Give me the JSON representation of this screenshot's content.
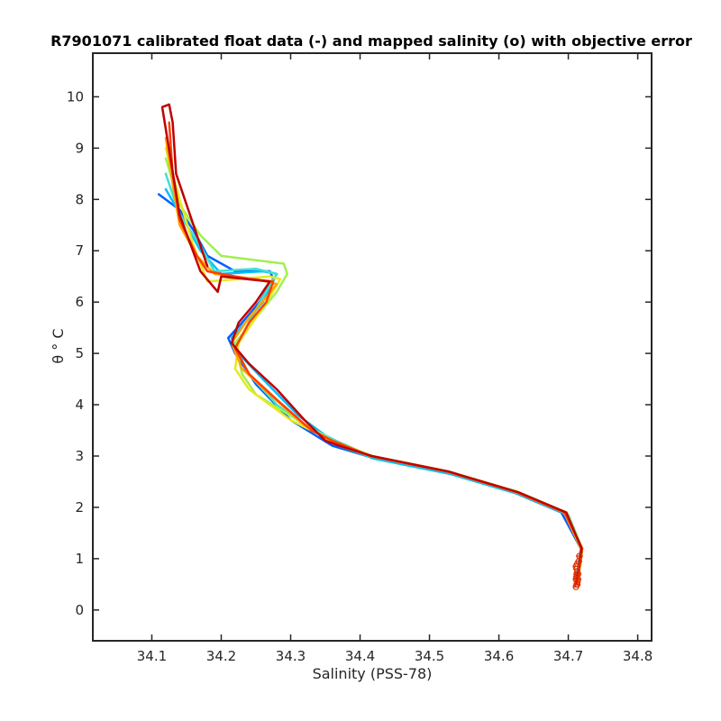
{
  "chart_data": {
    "type": "line",
    "title": "R7901071 calibrated float data (-) and mapped salinity (o) with objective error",
    "xlabel": "Salinity (PSS-78)",
    "ylabel": "θ ° C",
    "xlim": [
      34.015,
      34.82
    ],
    "ylim": [
      -0.6,
      10.85
    ],
    "xticks": [
      34.1,
      34.2,
      34.3,
      34.4,
      34.5,
      34.6,
      34.7,
      34.8
    ],
    "yticks": [
      0,
      1,
      2,
      3,
      4,
      5,
      6,
      7,
      8,
      9,
      10
    ],
    "grid": false,
    "legend": "none",
    "colors": [
      "#0060ff",
      "#00bfff",
      "#40e0d0",
      "#a0f050",
      "#e8e820",
      "#ffa500",
      "#ff4000",
      "#c00000"
    ],
    "series": [
      {
        "color": "#0060ff",
        "x": [
          34.71,
          34.715,
          34.718,
          34.69,
          34.62,
          34.52,
          34.41,
          34.36,
          34.3,
          34.25,
          34.22,
          34.21,
          34.23,
          34.255,
          34.275,
          34.27,
          34.22,
          34.18,
          34.16,
          34.14,
          34.11
        ],
        "y": [
          0.5,
          0.9,
          1.2,
          1.9,
          2.3,
          2.7,
          3.0,
          3.2,
          3.7,
          4.4,
          5.0,
          5.3,
          5.6,
          6.0,
          6.45,
          6.6,
          6.6,
          6.9,
          7.4,
          7.8,
          8.1
        ]
      },
      {
        "color": "#00bfff",
        "x": [
          34.712,
          34.717,
          34.72,
          34.7,
          34.63,
          34.53,
          34.42,
          34.37,
          34.31,
          34.26,
          34.225,
          34.215,
          34.235,
          34.26,
          34.28,
          34.26,
          34.2,
          34.17,
          34.15,
          34.12
        ],
        "y": [
          0.5,
          0.9,
          1.2,
          1.85,
          2.25,
          2.65,
          2.95,
          3.2,
          3.8,
          4.5,
          5.0,
          5.3,
          5.6,
          6.0,
          6.55,
          6.6,
          6.55,
          7.0,
          7.5,
          8.2
        ]
      },
      {
        "color": "#40e0d0",
        "x": [
          34.711,
          34.716,
          34.719,
          34.695,
          34.625,
          34.525,
          34.415,
          34.365,
          34.32,
          34.28,
          34.24,
          34.22,
          34.24,
          34.26,
          34.28,
          34.25,
          34.19,
          34.17,
          34.14,
          34.12
        ],
        "y": [
          0.5,
          0.95,
          1.2,
          1.9,
          2.3,
          2.7,
          3.0,
          3.3,
          3.6,
          4.0,
          4.6,
          5.1,
          5.6,
          6.1,
          6.55,
          6.65,
          6.6,
          7.1,
          7.7,
          8.5
        ]
      },
      {
        "color": "#a0f050",
        "x": [
          34.712,
          34.718,
          34.72,
          34.698,
          34.628,
          34.528,
          34.418,
          34.36,
          34.31,
          34.25,
          34.23,
          34.22,
          34.25,
          34.28,
          34.295,
          34.29,
          34.2,
          34.17,
          34.14,
          34.12
        ],
        "y": [
          0.5,
          0.9,
          1.2,
          1.9,
          2.3,
          2.7,
          3.0,
          3.3,
          3.7,
          4.2,
          4.6,
          5.2,
          5.7,
          6.2,
          6.55,
          6.75,
          6.9,
          7.3,
          7.9,
          8.8
        ]
      },
      {
        "color": "#e8e820",
        "x": [
          34.711,
          34.717,
          34.719,
          34.696,
          34.626,
          34.526,
          34.416,
          34.36,
          34.3,
          34.24,
          34.22,
          34.225,
          34.25,
          34.27,
          34.285,
          34.27,
          34.18,
          34.16,
          34.14,
          34.12
        ],
        "y": [
          0.5,
          0.9,
          1.2,
          1.9,
          2.3,
          2.7,
          3.0,
          3.3,
          3.7,
          4.3,
          4.7,
          5.2,
          5.7,
          6.1,
          6.45,
          6.5,
          6.4,
          7.1,
          8.0,
          9.0
        ]
      },
      {
        "color": "#ffa500",
        "x": [
          34.71,
          34.716,
          34.718,
          34.694,
          34.624,
          34.524,
          34.414,
          34.37,
          34.32,
          34.27,
          34.23,
          34.215,
          34.24,
          34.265,
          34.28,
          34.25,
          34.19,
          34.165,
          34.14,
          34.13,
          34.12
        ],
        "y": [
          0.5,
          0.9,
          1.2,
          1.9,
          2.3,
          2.7,
          3.0,
          3.2,
          3.6,
          4.2,
          4.7,
          5.2,
          5.7,
          6.1,
          6.35,
          6.45,
          6.55,
          6.9,
          7.5,
          8.3,
          9.2
        ]
      },
      {
        "color": "#ff4000",
        "x": [
          34.712,
          34.717,
          34.72,
          34.695,
          34.625,
          34.525,
          34.415,
          34.36,
          34.33,
          34.28,
          34.24,
          34.22,
          34.24,
          34.265,
          34.275,
          34.24,
          34.18,
          34.165,
          34.14,
          34.13,
          34.125
        ],
        "y": [
          0.5,
          0.9,
          1.2,
          1.9,
          2.3,
          2.7,
          3.0,
          3.3,
          3.5,
          4.1,
          4.6,
          5.1,
          5.6,
          6.0,
          6.4,
          6.45,
          6.6,
          6.9,
          7.6,
          8.5,
          9.5
        ]
      },
      {
        "color": "#c00000",
        "x": [
          34.711,
          34.716,
          34.719,
          34.697,
          34.627,
          34.527,
          34.417,
          34.37,
          34.35,
          34.32,
          34.28,
          34.24,
          34.215,
          34.225,
          34.25,
          34.265,
          34.27,
          34.2,
          34.195,
          34.17,
          34.14,
          34.115,
          34.125,
          34.13,
          34.135,
          34.18
        ],
        "y": [
          0.5,
          0.9,
          1.2,
          1.9,
          2.3,
          2.7,
          3.0,
          3.2,
          3.3,
          3.7,
          4.3,
          4.8,
          5.2,
          5.6,
          6.0,
          6.3,
          6.4,
          6.5,
          6.2,
          6.6,
          7.7,
          9.8,
          9.85,
          9.5,
          8.5,
          6.7
        ]
      }
    ],
    "mapped": {
      "marker": "o",
      "color": "#e03000",
      "x": [
        34.711,
        34.712,
        34.713,
        34.711,
        34.712,
        34.714,
        34.713,
        34.712,
        34.711,
        34.713,
        34.715,
        34.712,
        34.714,
        34.713,
        34.716
      ],
      "y": [
        0.45,
        0.5,
        0.55,
        0.6,
        0.65,
        0.7,
        0.75,
        0.8,
        0.85,
        0.9,
        0.95,
        0.7,
        0.6,
        0.5,
        1.05
      ],
      "err": [
        0.004,
        0.004,
        0.005,
        0.004,
        0.005,
        0.005,
        0.004,
        0.005,
        0.004,
        0.005,
        0.005,
        0.004,
        0.005,
        0.004,
        0.005
      ]
    }
  }
}
